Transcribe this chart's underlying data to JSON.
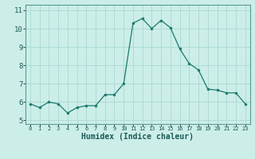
{
  "x": [
    0,
    1,
    2,
    3,
    4,
    5,
    6,
    7,
    8,
    9,
    10,
    11,
    12,
    13,
    14,
    15,
    16,
    17,
    18,
    19,
    20,
    21,
    22,
    23
  ],
  "y": [
    5.9,
    5.7,
    6.0,
    5.9,
    5.4,
    5.7,
    5.8,
    5.8,
    6.4,
    6.4,
    7.0,
    10.3,
    10.55,
    10.0,
    10.45,
    10.05,
    8.9,
    8.1,
    7.75,
    6.7,
    6.65,
    6.5,
    6.5,
    5.9
  ],
  "xlabel": "Humidex (Indice chaleur)",
  "ylim": [
    4.8,
    11.3
  ],
  "xlim": [
    -0.5,
    23.5
  ],
  "line_color": "#1a7a6e",
  "marker_color": "#1a7a6e",
  "bg_color": "#cceee8",
  "grid_color_major": "#b0ddd8",
  "grid_color_minor": "#b0ddd8",
  "yticks": [
    5,
    6,
    7,
    8,
    9,
    10,
    11
  ]
}
